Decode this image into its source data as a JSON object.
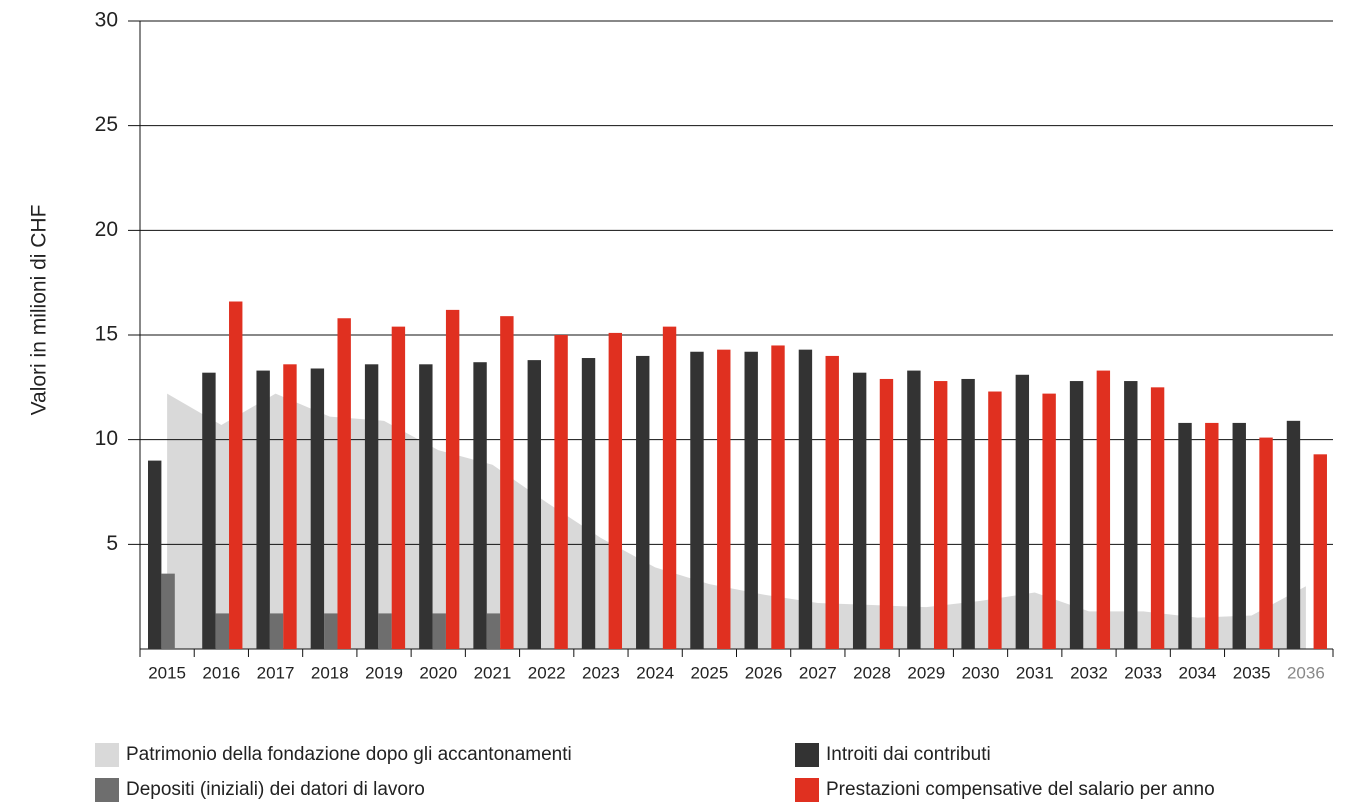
{
  "chart_data": {
    "type": "bar",
    "y_label": "Valori in milioni di CHF",
    "categories": [
      "2015",
      "2016",
      "2017",
      "2018",
      "2019",
      "2020",
      "2021",
      "2022",
      "2023",
      "2024",
      "2025",
      "2026",
      "2027",
      "2028",
      "2029",
      "2030",
      "2031",
      "2032",
      "2033",
      "2034",
      "2035",
      "2036"
    ],
    "ylim": [
      0,
      30
    ],
    "yticks": [
      5,
      10,
      15,
      20,
      25,
      30
    ],
    "grid": true,
    "series": [
      {
        "name": "Patrimonio della fondazione dopo gli accantonamenti",
        "type": "area",
        "color": "#d9d9d9",
        "values": [
          12.2,
          10.7,
          12.2,
          11.1,
          10.9,
          9.5,
          8.8,
          7.0,
          5.3,
          3.9,
          3.1,
          2.6,
          2.2,
          2.1,
          2.0,
          2.3,
          2.7,
          1.8,
          1.8,
          1.5,
          1.6,
          3.0
        ]
      },
      {
        "name": "Depositi (iniziali) dei datori di lavoro",
        "type": "bar",
        "color": "#6e6e6e",
        "values": [
          3.6,
          1.7,
          1.7,
          1.7,
          1.7,
          1.7,
          1.7,
          null,
          null,
          null,
          null,
          null,
          null,
          null,
          null,
          null,
          null,
          null,
          null,
          null,
          null,
          null
        ]
      },
      {
        "name": "Introiti dai contributi",
        "type": "bar",
        "color": "#333333",
        "values": [
          9.0,
          13.2,
          13.3,
          13.4,
          13.6,
          13.6,
          13.7,
          13.8,
          13.9,
          14.0,
          14.2,
          14.2,
          14.3,
          13.2,
          13.3,
          12.9,
          13.1,
          12.8,
          12.8,
          10.8,
          10.8,
          10.9
        ]
      },
      {
        "name": "Prestazioni compensative del salario per anno",
        "type": "bar",
        "color": "#e03020",
        "values": [
          null,
          16.6,
          13.6,
          15.8,
          15.4,
          16.2,
          15.9,
          15.0,
          15.1,
          15.4,
          14.3,
          14.5,
          14.0,
          12.9,
          12.8,
          12.3,
          12.2,
          13.3,
          12.5,
          10.8,
          10.1,
          9.3
        ]
      }
    ]
  }
}
